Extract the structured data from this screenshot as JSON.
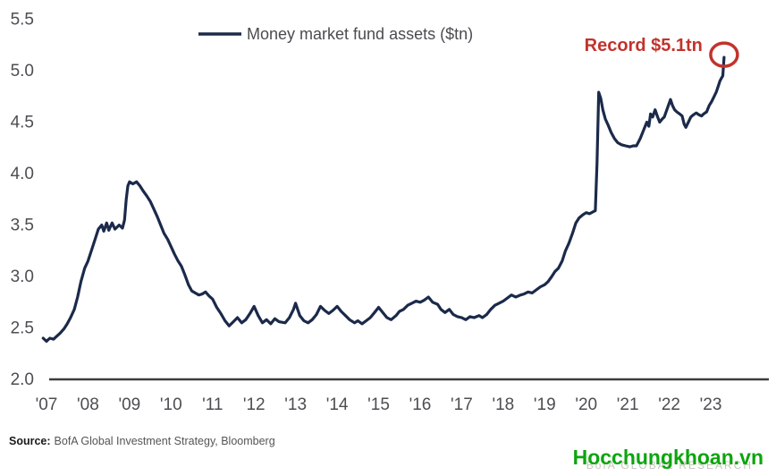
{
  "legend": {
    "label": "Money market fund assets ($tn)"
  },
  "annotation": {
    "record_label": "Record $5.1tn"
  },
  "source": {
    "label": "Source:",
    "text": "BofA Global Investment Strategy, Bloomberg"
  },
  "watermark": {
    "site": "Hocchungkhoan.vn",
    "ghost": "BofA GLOBAL RESEARCH"
  },
  "colors": {
    "line": "#1b2a4a",
    "record_red": "#c2332d",
    "axis": "#3d3d3d",
    "tick_label": "#4d4d52",
    "legend_text": "#4b4b52",
    "watermark_green": "#0da50d"
  },
  "chart_data": {
    "type": "line",
    "title": "Money market fund assets ($tn)",
    "xlabel": "",
    "ylabel": "",
    "xlim": [
      2006.8,
      2023.9
    ],
    "ylim": [
      2.0,
      5.5
    ],
    "grid": false,
    "legend_position": "top-center",
    "y_ticks": [
      2.0,
      2.5,
      3.0,
      3.5,
      4.0,
      4.5,
      5.0,
      5.5
    ],
    "y_tick_labels": [
      "2.0",
      "2.5",
      "3.0",
      "3.5",
      "4.0",
      "4.5",
      "5.0",
      "5.5"
    ],
    "x_ticks": [
      2007,
      2008,
      2009,
      2010,
      2011,
      2012,
      2013,
      2014,
      2015,
      2016,
      2017,
      2018,
      2019,
      2020,
      2021,
      2022,
      2023
    ],
    "x_tick_labels": [
      "'07",
      "'08",
      "'09",
      "'10",
      "'11",
      "'12",
      "'13",
      "'14",
      "'15",
      "'16",
      "'17",
      "'18",
      "'19",
      "'20",
      "'21",
      "'22",
      "'23"
    ],
    "annotations": [
      {
        "type": "text_with_circle",
        "text": "Record $5.1tn",
        "x": 2023.32,
        "y": 5.13
      }
    ],
    "series": [
      {
        "name": "Money market fund assets ($tn)",
        "points": [
          [
            2006.92,
            2.4
          ],
          [
            2007.0,
            2.37
          ],
          [
            2007.08,
            2.4
          ],
          [
            2007.17,
            2.39
          ],
          [
            2007.25,
            2.42
          ],
          [
            2007.33,
            2.45
          ],
          [
            2007.42,
            2.49
          ],
          [
            2007.5,
            2.54
          ],
          [
            2007.58,
            2.6
          ],
          [
            2007.67,
            2.68
          ],
          [
            2007.75,
            2.8
          ],
          [
            2007.83,
            2.95
          ],
          [
            2007.92,
            3.08
          ],
          [
            2008.0,
            3.15
          ],
          [
            2008.08,
            3.25
          ],
          [
            2008.17,
            3.36
          ],
          [
            2008.25,
            3.46
          ],
          [
            2008.33,
            3.5
          ],
          [
            2008.38,
            3.44
          ],
          [
            2008.45,
            3.52
          ],
          [
            2008.5,
            3.45
          ],
          [
            2008.58,
            3.52
          ],
          [
            2008.65,
            3.46
          ],
          [
            2008.75,
            3.5
          ],
          [
            2008.83,
            3.47
          ],
          [
            2008.88,
            3.55
          ],
          [
            2008.92,
            3.75
          ],
          [
            2008.96,
            3.88
          ],
          [
            2009.0,
            3.92
          ],
          [
            2009.08,
            3.9
          ],
          [
            2009.17,
            3.92
          ],
          [
            2009.25,
            3.88
          ],
          [
            2009.33,
            3.83
          ],
          [
            2009.42,
            3.78
          ],
          [
            2009.5,
            3.73
          ],
          [
            2009.58,
            3.66
          ],
          [
            2009.67,
            3.58
          ],
          [
            2009.75,
            3.5
          ],
          [
            2009.83,
            3.42
          ],
          [
            2009.92,
            3.36
          ],
          [
            2010.0,
            3.29
          ],
          [
            2010.08,
            3.22
          ],
          [
            2010.17,
            3.15
          ],
          [
            2010.25,
            3.1
          ],
          [
            2010.33,
            3.02
          ],
          [
            2010.42,
            2.92
          ],
          [
            2010.5,
            2.86
          ],
          [
            2010.58,
            2.84
          ],
          [
            2010.67,
            2.82
          ],
          [
            2010.75,
            2.83
          ],
          [
            2010.83,
            2.85
          ],
          [
            2010.92,
            2.81
          ],
          [
            2011.0,
            2.78
          ],
          [
            2011.1,
            2.7
          ],
          [
            2011.2,
            2.64
          ],
          [
            2011.3,
            2.57
          ],
          [
            2011.4,
            2.52
          ],
          [
            2011.5,
            2.56
          ],
          [
            2011.6,
            2.6
          ],
          [
            2011.7,
            2.55
          ],
          [
            2011.8,
            2.58
          ],
          [
            2011.9,
            2.64
          ],
          [
            2012.0,
            2.71
          ],
          [
            2012.1,
            2.62
          ],
          [
            2012.2,
            2.55
          ],
          [
            2012.3,
            2.58
          ],
          [
            2012.4,
            2.54
          ],
          [
            2012.5,
            2.59
          ],
          [
            2012.6,
            2.56
          ],
          [
            2012.75,
            2.55
          ],
          [
            2012.85,
            2.6
          ],
          [
            2012.95,
            2.68
          ],
          [
            2013.0,
            2.74
          ],
          [
            2013.1,
            2.62
          ],
          [
            2013.2,
            2.57
          ],
          [
            2013.3,
            2.55
          ],
          [
            2013.4,
            2.58
          ],
          [
            2013.5,
            2.63
          ],
          [
            2013.6,
            2.71
          ],
          [
            2013.7,
            2.67
          ],
          [
            2013.8,
            2.64
          ],
          [
            2013.9,
            2.67
          ],
          [
            2014.0,
            2.71
          ],
          [
            2014.1,
            2.66
          ],
          [
            2014.2,
            2.62
          ],
          [
            2014.3,
            2.58
          ],
          [
            2014.42,
            2.55
          ],
          [
            2014.5,
            2.57
          ],
          [
            2014.6,
            2.54
          ],
          [
            2014.7,
            2.57
          ],
          [
            2014.8,
            2.6
          ],
          [
            2014.9,
            2.65
          ],
          [
            2015.0,
            2.7
          ],
          [
            2015.08,
            2.66
          ],
          [
            2015.2,
            2.6
          ],
          [
            2015.3,
            2.58
          ],
          [
            2015.42,
            2.62
          ],
          [
            2015.5,
            2.66
          ],
          [
            2015.6,
            2.68
          ],
          [
            2015.7,
            2.72
          ],
          [
            2015.8,
            2.74
          ],
          [
            2015.9,
            2.76
          ],
          [
            2016.0,
            2.75
          ],
          [
            2016.1,
            2.77
          ],
          [
            2016.2,
            2.8
          ],
          [
            2016.3,
            2.75
          ],
          [
            2016.42,
            2.73
          ],
          [
            2016.5,
            2.68
          ],
          [
            2016.6,
            2.65
          ],
          [
            2016.7,
            2.68
          ],
          [
            2016.8,
            2.63
          ],
          [
            2016.9,
            2.61
          ],
          [
            2017.0,
            2.6
          ],
          [
            2017.1,
            2.58
          ],
          [
            2017.2,
            2.61
          ],
          [
            2017.3,
            2.6
          ],
          [
            2017.42,
            2.62
          ],
          [
            2017.5,
            2.6
          ],
          [
            2017.6,
            2.63
          ],
          [
            2017.7,
            2.68
          ],
          [
            2017.8,
            2.72
          ],
          [
            2017.9,
            2.74
          ],
          [
            2018.0,
            2.76
          ],
          [
            2018.1,
            2.79
          ],
          [
            2018.2,
            2.82
          ],
          [
            2018.3,
            2.8
          ],
          [
            2018.42,
            2.82
          ],
          [
            2018.5,
            2.83
          ],
          [
            2018.6,
            2.85
          ],
          [
            2018.7,
            2.84
          ],
          [
            2018.8,
            2.87
          ],
          [
            2018.9,
            2.9
          ],
          [
            2019.0,
            2.92
          ],
          [
            2019.08,
            2.95
          ],
          [
            2019.17,
            3.0
          ],
          [
            2019.25,
            3.05
          ],
          [
            2019.33,
            3.08
          ],
          [
            2019.42,
            3.15
          ],
          [
            2019.5,
            3.25
          ],
          [
            2019.58,
            3.32
          ],
          [
            2019.67,
            3.42
          ],
          [
            2019.75,
            3.52
          ],
          [
            2019.83,
            3.57
          ],
          [
            2019.92,
            3.6
          ],
          [
            2020.0,
            3.62
          ],
          [
            2020.08,
            3.61
          ],
          [
            2020.17,
            3.63
          ],
          [
            2020.22,
            3.64
          ],
          [
            2020.26,
            4.1
          ],
          [
            2020.3,
            4.79
          ],
          [
            2020.35,
            4.73
          ],
          [
            2020.4,
            4.62
          ],
          [
            2020.46,
            4.53
          ],
          [
            2020.53,
            4.47
          ],
          [
            2020.6,
            4.4
          ],
          [
            2020.68,
            4.34
          ],
          [
            2020.76,
            4.3
          ],
          [
            2020.85,
            4.28
          ],
          [
            2020.95,
            4.27
          ],
          [
            2021.05,
            4.26
          ],
          [
            2021.13,
            4.27
          ],
          [
            2021.21,
            4.27
          ],
          [
            2021.3,
            4.34
          ],
          [
            2021.38,
            4.42
          ],
          [
            2021.46,
            4.5
          ],
          [
            2021.51,
            4.46
          ],
          [
            2021.55,
            4.58
          ],
          [
            2021.6,
            4.55
          ],
          [
            2021.66,
            4.62
          ],
          [
            2021.72,
            4.55
          ],
          [
            2021.77,
            4.5
          ],
          [
            2021.83,
            4.53
          ],
          [
            2021.88,
            4.55
          ],
          [
            2021.95,
            4.63
          ],
          [
            2022.03,
            4.72
          ],
          [
            2022.08,
            4.66
          ],
          [
            2022.13,
            4.62
          ],
          [
            2022.18,
            4.6
          ],
          [
            2022.25,
            4.58
          ],
          [
            2022.31,
            4.56
          ],
          [
            2022.36,
            4.48
          ],
          [
            2022.4,
            4.45
          ],
          [
            2022.46,
            4.5
          ],
          [
            2022.52,
            4.55
          ],
          [
            2022.58,
            4.57
          ],
          [
            2022.65,
            4.59
          ],
          [
            2022.72,
            4.57
          ],
          [
            2022.78,
            4.56
          ],
          [
            2022.83,
            4.58
          ],
          [
            2022.9,
            4.6
          ],
          [
            2022.96,
            4.66
          ],
          [
            2023.02,
            4.7
          ],
          [
            2023.08,
            4.75
          ],
          [
            2023.13,
            4.79
          ],
          [
            2023.18,
            4.85
          ],
          [
            2023.22,
            4.9
          ],
          [
            2023.26,
            4.93
          ],
          [
            2023.29,
            4.95
          ],
          [
            2023.32,
            5.13
          ]
        ]
      }
    ]
  }
}
